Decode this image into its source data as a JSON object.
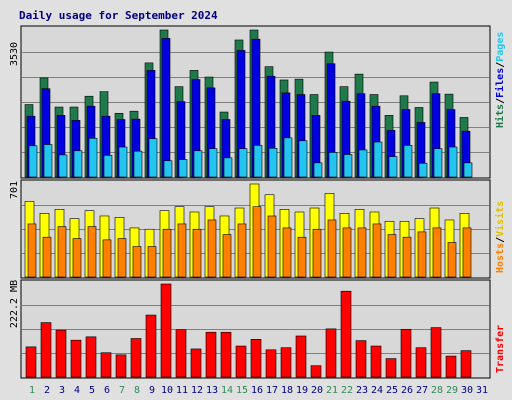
{
  "title": "Daily usage for September 2024",
  "colors": {
    "hits": "#1e7a4a",
    "files": "#0000e0",
    "pages": "#22c4f0",
    "visits": "#ffff00",
    "hosts": "#ff8000",
    "transfer": "#ff0000",
    "weekday_text": "#000080",
    "weekend_text": "#2e8b57"
  },
  "labels": {
    "panel1_right": [
      "Hits",
      "/",
      "Files",
      "/",
      "Pages"
    ],
    "panel2_right": [
      "Hosts",
      "/",
      "Visits"
    ],
    "panel3_right": [
      "Transfer"
    ],
    "panel1_max": "3530",
    "panel2_max": "701",
    "panel3_max": "222.2 MB"
  },
  "chart_data": [
    {
      "type": "bar",
      "title": "Daily usage for September 2024",
      "x": [
        "1",
        "2",
        "3",
        "4",
        "5",
        "6",
        "7",
        "8",
        "9",
        "10",
        "11",
        "12",
        "13",
        "14",
        "15",
        "16",
        "17",
        "18",
        "19",
        "20",
        "21",
        "22",
        "23",
        "24",
        "25",
        "26",
        "27",
        "28",
        "29",
        "30",
        "31"
      ],
      "weekend_days": [
        "1",
        "7",
        "8",
        "14",
        "15",
        "21",
        "22",
        "28",
        "29"
      ],
      "ylim": [
        0,
        3530
      ],
      "series": [
        {
          "name": "Hits",
          "values": [
            1740,
            2380,
            1680,
            1680,
            1940,
            2050,
            1530,
            1580,
            2740,
            3530,
            2170,
            2560,
            2400,
            1560,
            3290,
            3530,
            2650,
            2330,
            2350,
            1980,
            3000,
            2170,
            2470,
            1980,
            1480,
            1950,
            1670,
            2280,
            1990,
            1430,
            0
          ]
        },
        {
          "name": "Files",
          "values": [
            1460,
            2120,
            1480,
            1360,
            1700,
            1460,
            1380,
            1390,
            2560,
            3330,
            1810,
            2340,
            2140,
            1380,
            3040,
            3310,
            2420,
            2020,
            1980,
            1480,
            2720,
            1820,
            2000,
            1700,
            1120,
            1620,
            1310,
            2000,
            1620,
            1100,
            0
          ]
        },
        {
          "name": "Pages",
          "values": [
            750,
            780,
            530,
            630,
            930,
            520,
            720,
            620,
            920,
            390,
            420,
            630,
            680,
            460,
            680,
            760,
            690,
            940,
            870,
            340,
            590,
            540,
            650,
            840,
            490,
            760,
            330,
            680,
            720,
            340,
            0
          ]
        }
      ]
    },
    {
      "type": "bar",
      "x": [
        "1",
        "2",
        "3",
        "4",
        "5",
        "6",
        "7",
        "8",
        "9",
        "10",
        "11",
        "12",
        "13",
        "14",
        "15",
        "16",
        "17",
        "18",
        "19",
        "20",
        "21",
        "22",
        "23",
        "24",
        "25",
        "26",
        "27",
        "28",
        "29",
        "30",
        "31"
      ],
      "ylim": [
        0,
        701
      ],
      "series": [
        {
          "name": "Visits",
          "values": [
            570,
            480,
            510,
            440,
            500,
            460,
            450,
            370,
            360,
            500,
            530,
            490,
            530,
            460,
            520,
            701,
            620,
            510,
            490,
            520,
            630,
            480,
            510,
            490,
            420,
            420,
            440,
            520,
            430,
            480,
            0
          ]
        },
        {
          "name": "Hosts",
          "values": [
            400,
            300,
            380,
            290,
            380,
            280,
            290,
            230,
            230,
            360,
            400,
            360,
            430,
            320,
            400,
            530,
            460,
            370,
            300,
            360,
            430,
            370,
            370,
            400,
            320,
            300,
            340,
            370,
            260,
            370,
            0
          ]
        }
      ]
    },
    {
      "type": "bar",
      "x": [
        "1",
        "2",
        "3",
        "4",
        "5",
        "6",
        "7",
        "8",
        "9",
        "10",
        "11",
        "12",
        "13",
        "14",
        "15",
        "16",
        "17",
        "18",
        "19",
        "20",
        "21",
        "22",
        "23",
        "24",
        "25",
        "26",
        "27",
        "28",
        "29",
        "30",
        "31"
      ],
      "ylabel": "",
      "ylim": [
        0,
        222.2
      ],
      "series": [
        {
          "name": "Transfer",
          "values": [
            72,
            130,
            112,
            88,
            96,
            58,
            53,
            92,
            148,
            222.2,
            113,
            67,
            107,
            107,
            74,
            90,
            65,
            70,
            98,
            27,
            115,
            205,
            87,
            74,
            44,
            114,
            70,
            118,
            50,
            63,
            0
          ]
        }
      ]
    }
  ]
}
